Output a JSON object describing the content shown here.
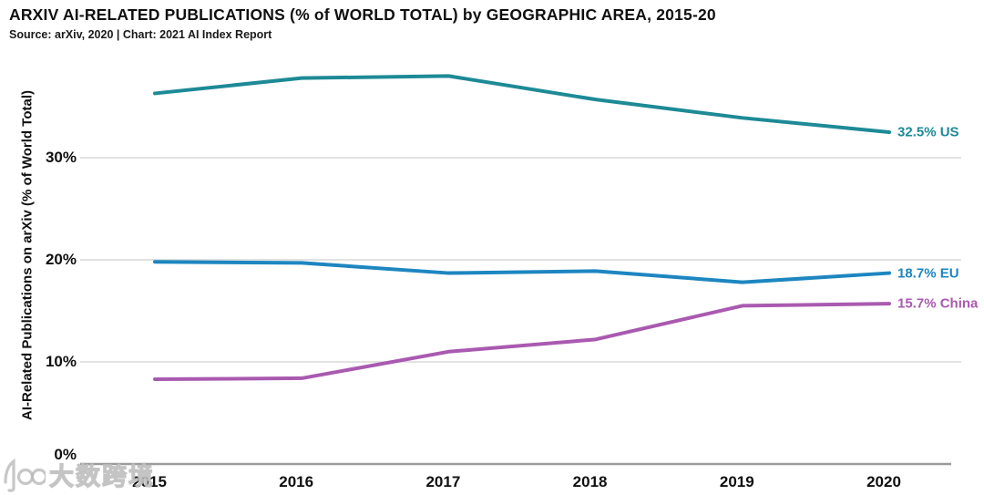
{
  "header": {
    "title": "ARXIV AI-RELATED PUBLICATIONS (% of WORLD TOTAL) by GEOGRAPHIC AREA, 2015-20",
    "source": "Source: arXiv, 2020 | Chart: 2021 AI Index Report"
  },
  "watermark": {
    "logo": "100-logo",
    "text": "大数跨境"
  },
  "colors": {
    "us_line": "#1d8a96",
    "eu_line": "#1d86c0",
    "china_line": "#a95ab0",
    "gridline": "#d9d9d9",
    "axis_line": "#9b9b9b",
    "text": "#101010"
  },
  "chart_data": {
    "type": "line",
    "title": "ARXIV AI-RELATED PUBLICATIONS (% of WORLD TOTAL) by GEOGRAPHIC AREA, 2015-20",
    "subtitle": "Source: arXiv, 2020 | Chart: 2021 AI Index Report",
    "x": [
      "2015",
      "2016",
      "2017",
      "2018",
      "2019",
      "2020"
    ],
    "xlabel": "",
    "ylabel": "AI-Related Publications on arXiv (% of World Total)",
    "ylim": [
      0,
      40
    ],
    "yticks": [
      {
        "value": 0,
        "label": "0%"
      },
      {
        "value": 10,
        "label": "10%"
      },
      {
        "value": 20,
        "label": "20%"
      },
      {
        "value": 30,
        "label": "30%"
      }
    ],
    "grid": true,
    "legend_position": "end-of-line-labels",
    "series": [
      {
        "name": "US",
        "color": "#1d8a96",
        "end_label": "32.5% US",
        "values": [
          36.3,
          37.8,
          38.0,
          35.7,
          33.9,
          32.5
        ]
      },
      {
        "name": "EU",
        "color": "#1d86c0",
        "end_label": "18.7% EU",
        "values": [
          19.8,
          19.7,
          18.7,
          18.9,
          17.8,
          18.7
        ]
      },
      {
        "name": "China",
        "color": "#a95ab0",
        "end_label": "15.7% China",
        "values": [
          8.3,
          8.4,
          11.0,
          12.2,
          15.5,
          15.7
        ]
      }
    ]
  }
}
